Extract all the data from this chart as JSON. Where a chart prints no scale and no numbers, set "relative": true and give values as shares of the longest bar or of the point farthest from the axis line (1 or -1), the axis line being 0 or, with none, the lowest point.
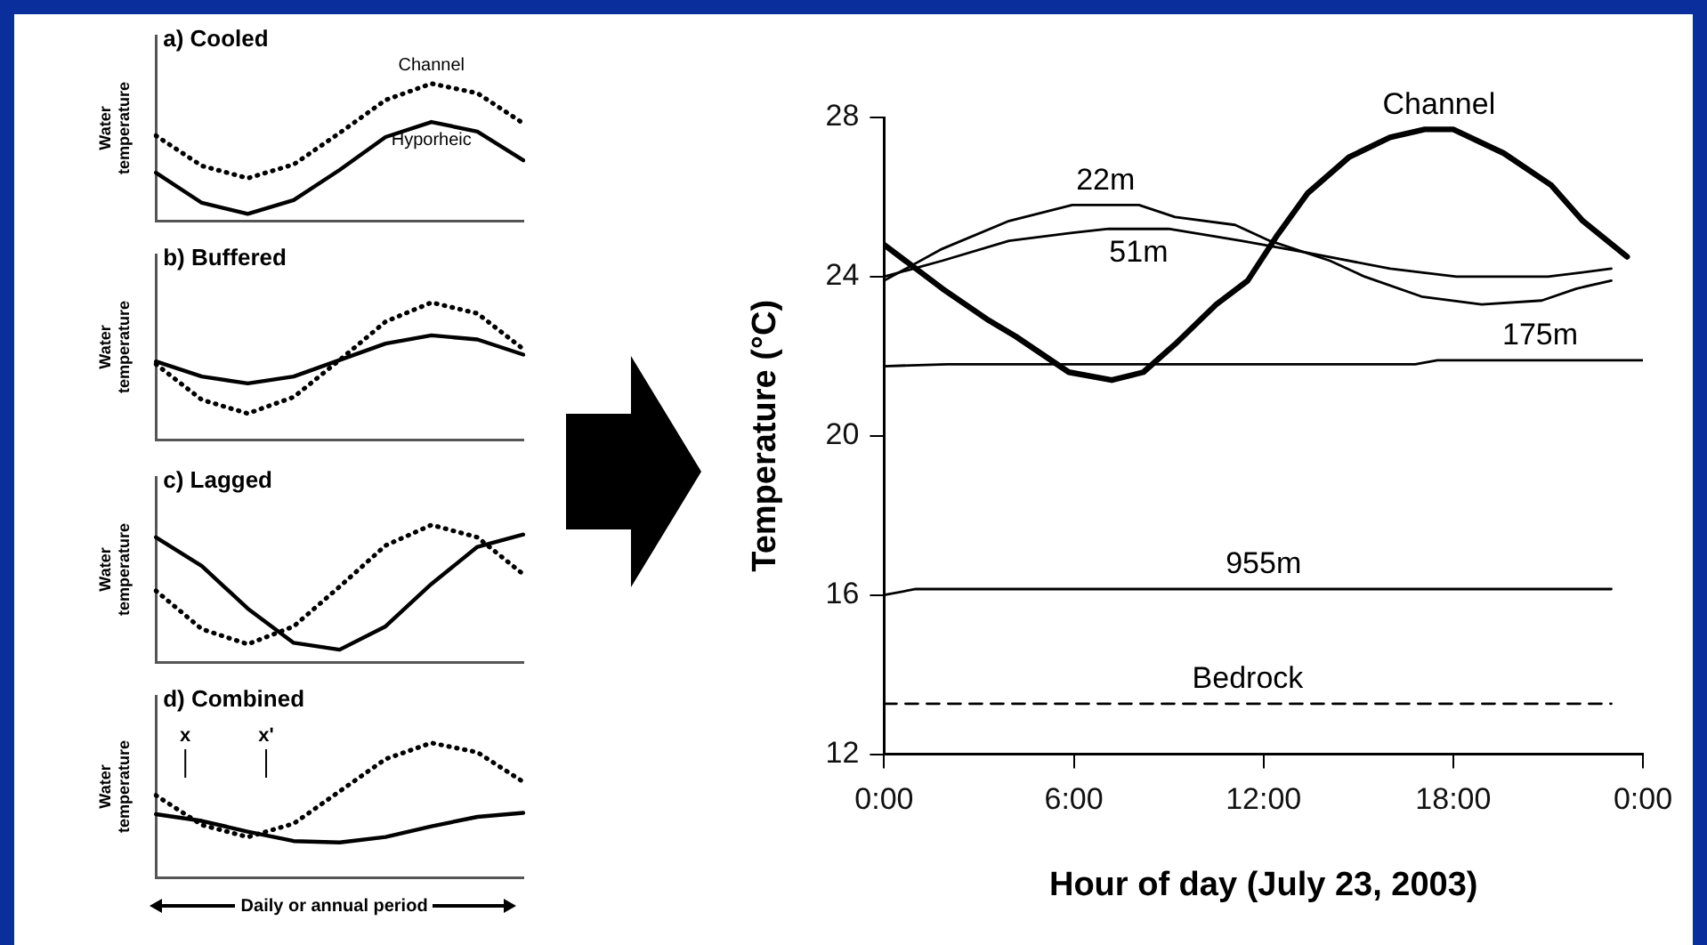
{
  "chart_data": [
    {
      "type": "line",
      "title": "a) Cooled",
      "ylabel": "Water temperature",
      "relative": true,
      "categories": [
        null,
        null,
        null,
        null,
        null,
        null,
        null,
        null,
        null
      ],
      "series": [
        {
          "name": "Channel",
          "color": "#000000",
          "line_style": "dotted",
          "values": [
            0.62,
            0.4,
            0.31,
            0.41,
            0.64,
            0.88,
            1.0,
            0.93,
            0.71
          ]
        },
        {
          "name": "Hyporheic",
          "color": "#000000",
          "line_style": "solid",
          "values": [
            0.35,
            0.13,
            0.05,
            0.15,
            0.37,
            0.61,
            0.72,
            0.65,
            0.44
          ]
        }
      ]
    },
    {
      "type": "line",
      "title": "b) Buffered",
      "ylabel": "Water temperature",
      "relative": true,
      "categories": [
        null,
        null,
        null,
        null,
        null,
        null,
        null,
        null,
        null
      ],
      "series": [
        {
          "color": "#000000",
          "line_style": "dotted",
          "values": [
            0.55,
            0.29,
            0.19,
            0.31,
            0.58,
            0.86,
            1.0,
            0.92,
            0.66
          ]
        },
        {
          "color": "#000000",
          "line_style": "solid",
          "values": [
            0.57,
            0.46,
            0.41,
            0.46,
            0.58,
            0.7,
            0.76,
            0.73,
            0.62
          ]
        }
      ]
    },
    {
      "type": "line",
      "title": "c) Lagged",
      "ylabel": "Water temperature",
      "relative": true,
      "categories": [
        null,
        null,
        null,
        null,
        null,
        null,
        null,
        null,
        null
      ],
      "series": [
        {
          "color": "#000000",
          "line_style": "dotted",
          "values": [
            0.52,
            0.24,
            0.13,
            0.26,
            0.55,
            0.85,
            1.0,
            0.91,
            0.64
          ]
        },
        {
          "color": "#000000",
          "line_style": "solid",
          "values": [
            0.91,
            0.7,
            0.39,
            0.14,
            0.09,
            0.26,
            0.57,
            0.84,
            0.93
          ]
        }
      ]
    },
    {
      "type": "line",
      "title": "d) Combined",
      "ylabel": "Water temperature",
      "xlabel": "Daily or annual period",
      "annotations": [
        "x",
        "x'"
      ],
      "relative": true,
      "categories": [
        null,
        null,
        null,
        null,
        null,
        null,
        null,
        null,
        null
      ],
      "series": [
        {
          "color": "#000000",
          "line_style": "dotted",
          "values": [
            0.61,
            0.39,
            0.3,
            0.4,
            0.64,
            0.88,
            1.0,
            0.93,
            0.71
          ]
        },
        {
          "color": "#000000",
          "line_style": "solid",
          "values": [
            0.47,
            0.42,
            0.34,
            0.27,
            0.26,
            0.3,
            0.38,
            0.45,
            0.48
          ]
        }
      ]
    },
    {
      "type": "line",
      "xlabel": "Hour of day (July 23, 2003)",
      "ylabel": "Temperature (°C)",
      "xlim": [
        0,
        24
      ],
      "ylim": [
        12,
        28
      ],
      "xticks": [
        {
          "value": 0,
          "label": "0:00"
        },
        {
          "value": 6,
          "label": "6:00"
        },
        {
          "value": 12,
          "label": "12:00"
        },
        {
          "value": 18,
          "label": "18:00"
        },
        {
          "value": 24,
          "label": "0:00"
        }
      ],
      "yticks": [
        12,
        16,
        20,
        24,
        28
      ],
      "series": [
        {
          "name": "Channel",
          "color": "#000000",
          "line_style": "solid",
          "x": [
            0,
            1.84,
            3.31,
            4.16,
            5.84,
            7.2,
            8.2,
            9.2,
            10.5,
            11.5,
            12.4,
            13.4,
            14.7,
            16.0,
            17.1,
            18.0,
            19.6,
            21.1,
            22.1,
            23.5
          ],
          "values": [
            24.8,
            23.7,
            22.9,
            22.5,
            21.6,
            21.4,
            21.6,
            22.3,
            23.3,
            23.9,
            25.0,
            26.1,
            27.0,
            27.5,
            27.7,
            27.7,
            27.1,
            26.3,
            25.4,
            24.5
          ]
        },
        {
          "name": "22m",
          "color": "#000000",
          "line_style": "solid",
          "x": [
            0,
            1.84,
            3.95,
            5.95,
            8.06,
            9.2,
            11.1,
            12.2,
            14.1,
            15.2,
            17.0,
            18.9,
            20.8,
            21.9,
            23.0
          ],
          "values": [
            23.9,
            24.7,
            25.4,
            25.8,
            25.8,
            25.5,
            25.3,
            24.9,
            24.4,
            24.0,
            23.5,
            23.3,
            23.4,
            23.7,
            23.9
          ]
        },
        {
          "name": "51m",
          "color": "#000000",
          "line_style": "solid",
          "x": [
            0,
            1.84,
            3.95,
            5.95,
            7.1,
            9.0,
            11.3,
            13.4,
            16.0,
            18.1,
            21.0,
            23.0
          ],
          "values": [
            24.0,
            24.4,
            24.9,
            25.1,
            25.2,
            25.2,
            24.9,
            24.6,
            24.2,
            24.0,
            24.0,
            24.2
          ]
        },
        {
          "name": "175m",
          "color": "#000000",
          "line_style": "solid",
          "x": [
            0,
            2,
            4,
            16.8,
            17.5,
            24
          ],
          "values": [
            21.75,
            21.8,
            21.8,
            21.8,
            21.9,
            21.9
          ]
        },
        {
          "name": "955m",
          "color": "#000000",
          "line_style": "solid",
          "x": [
            0,
            1,
            23
          ],
          "values": [
            16.0,
            16.15,
            16.15
          ]
        },
        {
          "name": "Bedrock",
          "color": "#000000",
          "line_style": "dashed",
          "x": [
            0,
            23
          ],
          "values": [
            13.27,
            13.27
          ]
        }
      ]
    }
  ]
}
